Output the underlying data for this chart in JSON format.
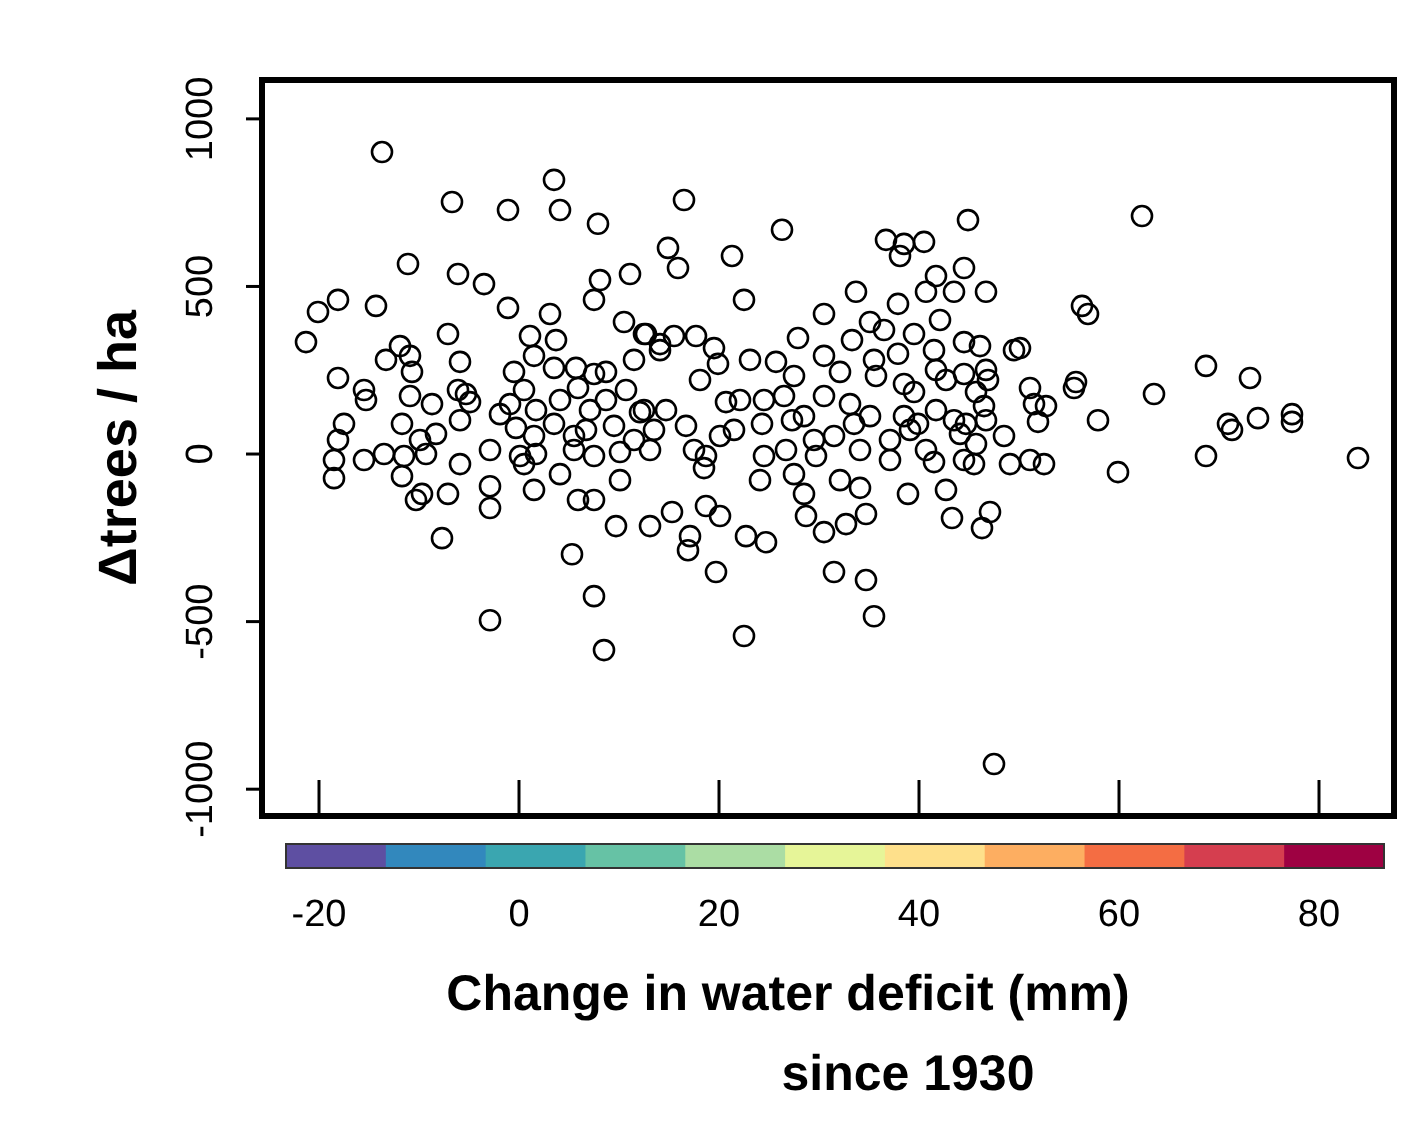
{
  "chart_data": {
    "type": "scatter",
    "xlabel": "Change in water deficit (mm)\nsince 1930",
    "ylabel": "Δtrees / ha",
    "xlim": [
      -25.7,
      87.5
    ],
    "ylim": [
      -1080,
      1116
    ],
    "xticks": [
      -20,
      0,
      20,
      40,
      60,
      80
    ],
    "yticks": [
      -1000,
      -500,
      0,
      500,
      1000
    ],
    "marker": "circle",
    "series": [
      {
        "color": "#000000",
        "x": [
          -13.7,
          -6.7,
          -1.1,
          3.5,
          4.1,
          7.9,
          -11.1,
          -6.1,
          -3.5,
          8.1,
          11.1,
          7.5,
          -21.3,
          -20.1,
          -18.1,
          -14.3,
          -1.1,
          3.1,
          -7.1,
          1.1,
          3.7,
          10.5,
          12.5,
          -11.9,
          -13.3,
          -10.9,
          -10.7,
          -5.9,
          -0.5,
          1.5,
          3.5,
          5.7,
          7.5,
          8.7,
          11.5,
          -18.1,
          -15.5,
          -15.3,
          -10.9,
          -8.7,
          -6.1,
          -5.3,
          -4.9,
          -0.9,
          0.5,
          1.7,
          4.1,
          5.9,
          7.1,
          8.7,
          10.7,
          12.5,
          -17.5,
          -18.1,
          -11.7,
          -9.9,
          -8.3,
          -5.9,
          -1.9,
          -0.3,
          1.5,
          3.5,
          5.5,
          6.7,
          9.5,
          11.5,
          -18.5,
          -15.5,
          -13.5,
          -11.5,
          -9.3,
          -2.9,
          0.1,
          1.7,
          5.5,
          7.5,
          10.1,
          -18.5,
          -11.7,
          -10.3,
          -9.7,
          -7.1,
          -2.9,
          -2.9,
          -7.7,
          5.3,
          7.5,
          -2.9,
          8.5,
          9.7,
          -5.9,
          0.5,
          1.5,
          4.1,
          5.9,
          7.5,
          10.1,
          16.9,
          17.1,
          19.7,
          22.5,
          31.5,
          34.7,
          35.5,
          47.5,
          38.9,
          42.7,
          43.3,
          46.3,
          47.1,
          13.1,
          15.3,
          24.7,
          22.7,
          28.7,
          30.5,
          32.7,
          34.7,
          28.5,
          37.1,
          41.5,
          45.5,
          49.1,
          20.1,
          18.7,
          18.5,
          24.1,
          27.5,
          32.1,
          34.1,
          52.5,
          51.1,
          59.9,
          68.7,
          83.9,
          62.3,
          56.3,
          56.9,
          68.7,
          73.1,
          63.5,
          55.7,
          55.5,
          51.1,
          51.5,
          52.7,
          51.9,
          57.9,
          70.9,
          71.3,
          73.9,
          77.3,
          77.3,
          50.1,
          16.5,
          26.3,
          14.9,
          15.9,
          21.3,
          22.5,
          36.7,
          38.5,
          38.1,
          40.5,
          44.9,
          41.7,
          44.5,
          43.5,
          40.7,
          46.7,
          33.7,
          37.9,
          30.5,
          42.1,
          35.1,
          36.5,
          39.5,
          44.5,
          46.1,
          49.5,
          27.9,
          33.3,
          12.7,
          14.1,
          14.1,
          15.5,
          17.7,
          19.5,
          19.9,
          23.1,
          25.7,
          30.5,
          35.5,
          37.9,
          41.5,
          41.7,
          44.5,
          46.7,
          46.9,
          18.1,
          27.5,
          32.1,
          35.7,
          39.5,
          38.5,
          42.7,
          45.7,
          46.5,
          12.1,
          14.7,
          20.7,
          22.1,
          24.5,
          26.5,
          28.5,
          30.5,
          33.1,
          35.1,
          38.5,
          39.9,
          41.7,
          43.5,
          44.7,
          46.7,
          13.5,
          16.7,
          20.1,
          21.5,
          24.3,
          27.3,
          29.5,
          31.5,
          33.5,
          37.1,
          39.1,
          40.7,
          44.1,
          45.7,
          48.5,
          13.1,
          17.5,
          18.7,
          24.5,
          26.7,
          29.7,
          34.1,
          44.5
        ],
        "values": [
          901,
          752,
          728,
          818,
          728,
          687,
          567,
          537,
          507,
          519,
          537,
          460,
          334,
          424,
          460,
          442,
          436,
          418,
          358,
          352,
          340,
          394,
          358,
          322,
          281,
          293,
          245,
          275,
          245,
          293,
          257,
          257,
          239,
          245,
          281,
          227,
          191,
          161,
          173,
          149,
          191,
          179,
          155,
          149,
          191,
          131,
          161,
          197,
          131,
          161,
          191,
          131,
          90,
          42,
          90,
          42,
          60,
          101,
          119,
          78,
          54,
          90,
          54,
          72,
          84,
          42,
          -18,
          -18,
          0,
          -6,
          0,
          12,
          -6,
          0,
          12,
          -6,
          6,
          -72,
          -66,
          -137,
          -119,
          -119,
          -96,
          -161,
          -251,
          -299,
          -424,
          -496,
          -585,
          -215,
          -30,
          -30,
          -107,
          -60,
          -137,
          -137,
          -78,
          -287,
          -245,
          -352,
          -543,
          -352,
          -376,
          -484,
          -925,
          -119,
          -107,
          -191,
          -221,
          -173,
          -215,
          -173,
          -263,
          -245,
          -185,
          -233,
          -209,
          -179,
          -119,
          -18,
          -24,
          -30,
          -30,
          -185,
          -155,
          -42,
          -78,
          -60,
          -78,
          -101,
          -30,
          -18,
          -54,
          -6,
          -12,
          710,
          442,
          418,
          263,
          227,
          179,
          215,
          197,
          197,
          149,
          143,
          96,
          101,
          90,
          72,
          107,
          119,
          96,
          316,
          758,
          669,
          615,
          555,
          591,
          460,
          639,
          627,
          591,
          633,
          698,
          531,
          555,
          484,
          484,
          484,
          484,
          448,
          418,
          400,
          394,
          370,
          358,
          334,
          322,
          310,
          346,
          340,
          358,
          328,
          310,
          352,
          352,
          316,
          269,
          281,
          275,
          293,
          281,
          299,
          310,
          251,
          239,
          251,
          221,
          221,
          233,
          245,
          233,
          185,
          209,
          221,
          185,
          143,
          125,
          131,
          155,
          161,
          161,
          173,
          113,
          173,
          149,
          113,
          113,
          90,
          131,
          101,
          90,
          101,
          72,
          84,
          54,
          72,
          90,
          101,
          42,
          54,
          90,
          42,
          72,
          12,
          60,
          30,
          54,
          12,
          12,
          -6,
          -6,
          12,
          -6,
          12,
          -18
        ]
      }
    ]
  }
}
